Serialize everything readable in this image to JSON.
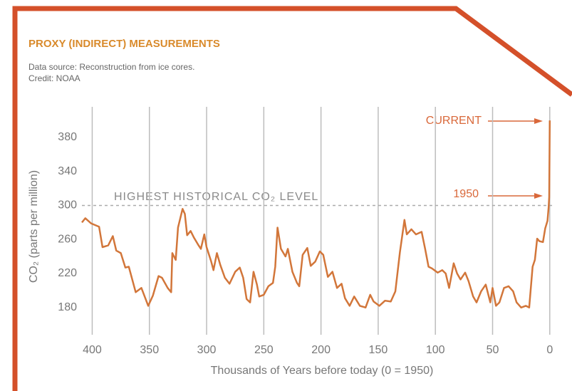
{
  "chart_data": {
    "type": "line",
    "title": "PROXY (INDIRECT) MEASUREMENTS",
    "subtitle": [
      "Data source: Reconstruction from ice cores.",
      "Credit: NOAA"
    ],
    "xlabel": "Thousands of Years before today (0 = 1950)",
    "ylabel": "CO₂ (parts per million)",
    "xlim": [
      409,
      -2
    ],
    "ylim": [
      148,
      416
    ],
    "xticks": [
      400,
      350,
      300,
      250,
      200,
      150,
      100,
      50,
      0
    ],
    "yticks": [
      180,
      220,
      260,
      300,
      340,
      380
    ],
    "grid": "x",
    "reference_line": {
      "value": 300,
      "label": "HIGHEST HISTORICAL CO₂ LEVEL"
    },
    "annotations": [
      {
        "text": "CURRENT"
      },
      {
        "text": "1950"
      }
    ],
    "series": [
      {
        "color": "#d2763a",
        "x": [
          409,
          406,
          401,
          394,
          391,
          386,
          382,
          379,
          375,
          371,
          368,
          362,
          357,
          351,
          347,
          342,
          339,
          334,
          331,
          330,
          327,
          325,
          321,
          319,
          317,
          314,
          311,
          307,
          305,
          302,
          300,
          296,
          294,
          291,
          288,
          284,
          280,
          275,
          271,
          268,
          265,
          262,
          259,
          256,
          254,
          250,
          246,
          242,
          240,
          238,
          235,
          231,
          229,
          225,
          221,
          219,
          216,
          212,
          209,
          205,
          201,
          198,
          194,
          190,
          186,
          182,
          179,
          175,
          171,
          166,
          161,
          157,
          154,
          149,
          144,
          139,
          135,
          131,
          127,
          125,
          121,
          117,
          112,
          109,
          106,
          103,
          98,
          94,
          91,
          88,
          84,
          81,
          78,
          74,
          71,
          67,
          64,
          60,
          56,
          52,
          50,
          47,
          44,
          40,
          36,
          32,
          29,
          25,
          21,
          18,
          15,
          13,
          11,
          9,
          6,
          4,
          2,
          1,
          0.5,
          0
        ],
        "values": [
          280,
          285,
          279,
          275,
          251,
          253,
          264,
          247,
          244,
          227,
          228,
          198,
          203,
          182,
          194,
          217,
          215,
          203,
          198,
          244,
          236,
          274,
          296,
          290,
          265,
          270,
          262,
          253,
          249,
          266,
          251,
          234,
          224,
          244,
          230,
          215,
          208,
          222,
          227,
          215,
          190,
          186,
          222,
          207,
          193,
          195,
          205,
          209,
          228,
          274,
          249,
          240,
          249,
          222,
          209,
          205,
          242,
          250,
          229,
          234,
          246,
          242,
          216,
          222,
          203,
          208,
          191,
          182,
          193,
          182,
          180,
          195,
          187,
          182,
          188,
          187,
          199,
          245,
          283,
          266,
          272,
          266,
          269,
          249,
          228,
          226,
          221,
          224,
          220,
          203,
          232,
          220,
          213,
          221,
          211,
          193,
          186,
          199,
          207,
          186,
          203,
          182,
          186,
          203,
          205,
          199,
          186,
          180,
          182,
          180,
          228,
          236,
          261,
          258,
          257,
          273,
          282,
          298,
          310,
          400
        ]
      }
    ]
  }
}
